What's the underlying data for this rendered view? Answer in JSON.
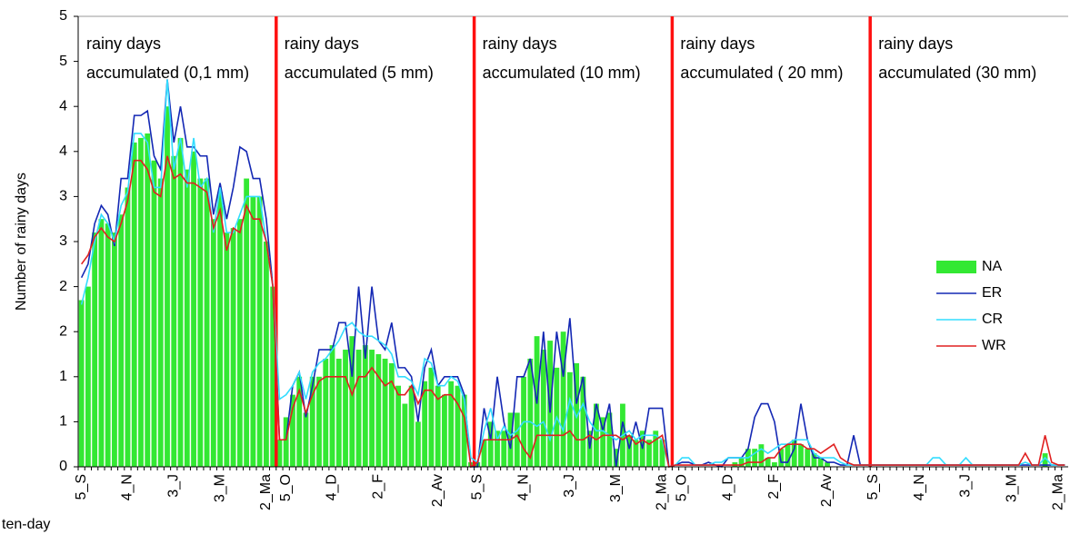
{
  "chart_data": {
    "type": "bar",
    "y_label": "Number of rainy days",
    "x_label": "ten-day",
    "annotations": [
      "rainy days accumulated (0,1 mm)",
      "rainy days accumulated (5 mm)",
      "rainy days accumulated (10 mm)",
      "rainy days accumulated ( 20 mm)",
      "rainy days accumulated (30 mm)"
    ],
    "categories": [
      "5_S",
      null,
      null,
      null,
      null,
      null,
      null,
      "4_N",
      null,
      null,
      null,
      null,
      null,
      null,
      "3_J",
      null,
      null,
      null,
      null,
      null,
      null,
      "3_M",
      null,
      null,
      null,
      null,
      null,
      null,
      "2_Ma",
      null,
      null,
      "5_O",
      null,
      null,
      null,
      null,
      null,
      null,
      "4_D",
      null,
      null,
      null,
      null,
      null,
      null,
      "2_F",
      null,
      null,
      null,
      null,
      null,
      null,
      null,
      null,
      "2_Av",
      null,
      null,
      null,
      null,
      null,
      "5_S",
      null,
      null,
      null,
      null,
      null,
      null,
      "4_N",
      null,
      null,
      null,
      null,
      null,
      null,
      "3_J",
      null,
      null,
      null,
      null,
      null,
      null,
      "3_M",
      null,
      null,
      null,
      null,
      null,
      null,
      "2_Ma",
      null,
      null,
      "5_O",
      null,
      null,
      null,
      null,
      null,
      null,
      "4_D",
      null,
      null,
      null,
      null,
      null,
      null,
      "2_F",
      null,
      null,
      null,
      null,
      null,
      null,
      null,
      "2_Av",
      null,
      null,
      null,
      null,
      null,
      null,
      "5_S",
      null,
      null,
      null,
      null,
      null,
      null,
      "4_N",
      null,
      null,
      null,
      null,
      null,
      null,
      "3_J",
      null,
      null,
      null,
      null,
      null,
      null,
      "3_M",
      null,
      null,
      null,
      null,
      null,
      null,
      "2_Ma",
      null
    ],
    "series": [
      {
        "name": "NA",
        "type": "bar",
        "color": "#33e833",
        "values": [
          1.85,
          2.0,
          2.6,
          2.75,
          2.7,
          2.6,
          2.8,
          3.1,
          3.6,
          3.65,
          3.7,
          3.4,
          3.2,
          4.0,
          3.45,
          3.65,
          3.3,
          3.5,
          3.2,
          3.2,
          2.75,
          3.05,
          2.6,
          2.65,
          2.75,
          3.2,
          3.0,
          3.0,
          2.5,
          2.0,
          0.3,
          0.55,
          0.8,
          1.0,
          0.6,
          1.0,
          1.0,
          1.2,
          1.35,
          1.2,
          1.3,
          1.45,
          1.3,
          1.35,
          1.3,
          1.25,
          1.2,
          1.15,
          0.9,
          0.7,
          0.9,
          0.5,
          0.95,
          1.1,
          0.9,
          0.8,
          0.95,
          0.9,
          0.8,
          0.05,
          0.05,
          0.3,
          0.5,
          0.4,
          0.4,
          0.6,
          0.6,
          1.0,
          1.2,
          1.45,
          1.3,
          1.4,
          1.1,
          1.5,
          1.05,
          1.15,
          1.0,
          0.4,
          0.7,
          0.55,
          0.6,
          0.2,
          0.7,
          0.35,
          0.3,
          0.4,
          0.3,
          0.4,
          0.3,
          0.0,
          0,
          0,
          0,
          0,
          0,
          0,
          0,
          0,
          0,
          0.05,
          0.1,
          0.2,
          0.2,
          0.25,
          0.1,
          0.05,
          0.2,
          0.25,
          0.3,
          0.25,
          0.2,
          0.15,
          0.1,
          0.05,
          0,
          0,
          0,
          0,
          0,
          0,
          0,
          0,
          0,
          0,
          0,
          0,
          0,
          0,
          0,
          0,
          0,
          0,
          0,
          0,
          0,
          0,
          0,
          0,
          0,
          0,
          0,
          0,
          0,
          0,
          0,
          0,
          0.15,
          0,
          0,
          0
        ]
      },
      {
        "name": "ER",
        "type": "line",
        "color": "#1428b4",
        "values": [
          2.1,
          2.25,
          2.7,
          2.9,
          2.8,
          2.45,
          3.2,
          3.2,
          3.9,
          3.9,
          3.95,
          3.45,
          3.3,
          4.3,
          3.6,
          4.0,
          3.55,
          3.55,
          3.45,
          3.45,
          2.8,
          3.15,
          2.75,
          3.1,
          3.55,
          3.5,
          3.2,
          3.2,
          2.75,
          2.0,
          0.3,
          0.3,
          0.9,
          1.05,
          0.55,
          0.9,
          1.3,
          1.3,
          1.3,
          1.6,
          1.6,
          1.0,
          2.0,
          1.2,
          2.0,
          1.4,
          1.3,
          1.6,
          1.1,
          1.1,
          1.0,
          0.5,
          1.1,
          1.3,
          0.9,
          1.0,
          1.0,
          1.0,
          0.8,
          0.0,
          0.0,
          0.65,
          0.3,
          1.0,
          0.5,
          0.2,
          1.0,
          1.0,
          1.2,
          0.7,
          1.5,
          0.6,
          1.5,
          1.0,
          1.65,
          0.7,
          1.0,
          0.2,
          0.7,
          0.4,
          0.7,
          0.0,
          0.5,
          0.2,
          0.5,
          0.2,
          0.65,
          0.65,
          0.65,
          0.0,
          0.02,
          0.05,
          0.05,
          0.02,
          0.02,
          0.05,
          0.02,
          0.0,
          0.1,
          0.1,
          0.1,
          0.2,
          0.55,
          0.7,
          0.7,
          0.5,
          0.05,
          0.05,
          0.2,
          0.7,
          0.3,
          0.1,
          0.1,
          0.05,
          0.05,
          0.02,
          0.02,
          0.35,
          0.02,
          0.02,
          0.02,
          0.02,
          0.02,
          0.02,
          0.02,
          0.02,
          0.02,
          0.02,
          0.02,
          0.02,
          0.02,
          0.02,
          0.02,
          0.02,
          0.02,
          0.02,
          0.02,
          0.02,
          0.02,
          0.02,
          0.02,
          0.02,
          0.02,
          0.02,
          0.02,
          0.02,
          0.02,
          0.02,
          0.02,
          0.02
        ]
      },
      {
        "name": "CR",
        "type": "line",
        "color": "#33ddff",
        "values": [
          1.8,
          2.1,
          2.5,
          2.8,
          2.7,
          2.5,
          2.9,
          3.05,
          3.7,
          3.7,
          3.6,
          3.1,
          3.1,
          4.3,
          3.3,
          3.65,
          3.1,
          3.65,
          3.1,
          3.2,
          2.6,
          3.1,
          2.6,
          2.6,
          2.8,
          3.0,
          3.0,
          3.0,
          2.5,
          2.0,
          0.75,
          0.8,
          0.9,
          1.05,
          0.75,
          1.05,
          1.15,
          1.2,
          1.3,
          1.4,
          1.55,
          1.6,
          1.5,
          1.45,
          1.45,
          1.4,
          1.35,
          1.25,
          1.0,
          1.0,
          0.95,
          0.8,
          1.2,
          1.15,
          0.9,
          0.9,
          1.0,
          0.95,
          0.75,
          0.1,
          0.05,
          0.4,
          0.65,
          0.3,
          0.45,
          0.35,
          0.4,
          0.5,
          0.5,
          0.45,
          0.5,
          0.3,
          0.55,
          0.4,
          0.75,
          0.55,
          0.7,
          0.5,
          0.4,
          0.4,
          0.35,
          0.3,
          0.35,
          0.4,
          0.3,
          0.35,
          0.35,
          0.35,
          0.3,
          0.0,
          0.02,
          0.1,
          0.1,
          0.02,
          0.02,
          0.02,
          0.05,
          0.05,
          0.1,
          0.1,
          0.1,
          0.1,
          0.15,
          0.2,
          0.15,
          0.2,
          0.25,
          0.25,
          0.3,
          0.3,
          0.3,
          0.15,
          0.1,
          0.1,
          0.1,
          0.05,
          0.02,
          0.02,
          0.02,
          0.02,
          0.02,
          0.02,
          0.02,
          0.02,
          0.02,
          0.02,
          0.02,
          0.02,
          0.02,
          0.1,
          0.1,
          0.02,
          0.02,
          0.02,
          0.1,
          0.02,
          0.02,
          0.02,
          0.02,
          0.02,
          0.02,
          0.02,
          0.02,
          0.05,
          0.02,
          0.02,
          0.1,
          0.02,
          0.02,
          0.02
        ]
      },
      {
        "name": "WR",
        "type": "line",
        "color": "#e02020",
        "values": [
          2.25,
          2.35,
          2.55,
          2.65,
          2.55,
          2.5,
          2.7,
          2.95,
          3.4,
          3.4,
          3.3,
          3.05,
          3.0,
          3.45,
          3.2,
          3.25,
          3.15,
          3.15,
          3.1,
          3.05,
          2.65,
          2.85,
          2.4,
          2.65,
          2.6,
          2.9,
          2.75,
          2.75,
          2.5,
          2.0,
          0.3,
          0.3,
          0.65,
          0.85,
          0.6,
          0.8,
          0.95,
          1.0,
          1.0,
          1.0,
          1.0,
          0.8,
          1.0,
          1.0,
          1.1,
          1.0,
          0.9,
          0.95,
          0.8,
          0.8,
          0.9,
          0.7,
          0.85,
          0.85,
          0.75,
          0.8,
          0.8,
          0.7,
          0.55,
          0.0,
          0.05,
          0.3,
          0.3,
          0.3,
          0.3,
          0.3,
          0.35,
          0.2,
          0.1,
          0.35,
          0.35,
          0.35,
          0.35,
          0.35,
          0.4,
          0.3,
          0.3,
          0.35,
          0.3,
          0.35,
          0.35,
          0.35,
          0.3,
          0.35,
          0.25,
          0.3,
          0.25,
          0.3,
          0.35,
          0.0,
          0.02,
          0.02,
          0.02,
          0.02,
          0.02,
          0.02,
          0.02,
          0.02,
          0.02,
          0.02,
          0.02,
          0.05,
          0.05,
          0.05,
          0.1,
          0.1,
          0.2,
          0.25,
          0.25,
          0.25,
          0.2,
          0.2,
          0.15,
          0.2,
          0.25,
          0.1,
          0.05,
          0.02,
          0.02,
          0.02,
          0.02,
          0.02,
          0.02,
          0.02,
          0.02,
          0.02,
          0.02,
          0.02,
          0.02,
          0.02,
          0.02,
          0.02,
          0.02,
          0.02,
          0.02,
          0.02,
          0.02,
          0.02,
          0.02,
          0.02,
          0.02,
          0.02,
          0.02,
          0.15,
          0.02,
          0.02,
          0.35,
          0.05,
          0.02,
          0.02
        ]
      }
    ],
    "ylim": [
      0,
      5
    ],
    "yticks": [
      0,
      {
        "value": 0.5,
        "label": "1"
      },
      1,
      {
        "value": 1.5,
        "label": "2"
      },
      2,
      {
        "value": 2.5,
        "label": "3"
      },
      3,
      {
        "value": 3.5,
        "label": "4"
      },
      4,
      {
        "value": 4.5,
        "label": "5"
      },
      5
    ],
    "grid": false,
    "legend": "right",
    "separator_color": "#ff1010"
  }
}
